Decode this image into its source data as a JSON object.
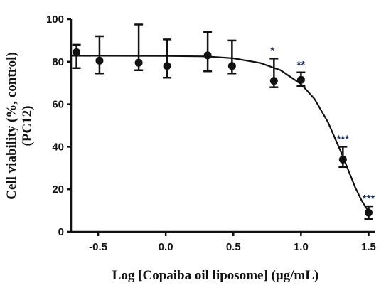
{
  "chart_data": {
    "type": "scatter",
    "xlabel": "Log [Copaiba oil liposome] (μg/mL)",
    "ylabel_line1": "Cell viability (%, control)",
    "ylabel_line2": "(PC12)",
    "xlim": [
      -0.7,
      1.55
    ],
    "ylim": [
      0,
      100
    ],
    "x_ticks": [
      -0.5,
      0.0,
      0.5,
      1.0,
      1.5
    ],
    "x_tick_labels": [
      "-0.5",
      "0.0",
      "0.5",
      "1.0",
      "1.5"
    ],
    "y_ticks": [
      0,
      20,
      40,
      60,
      80,
      100
    ],
    "y_tick_labels": [
      "0",
      "20",
      "40",
      "60",
      "80",
      "100"
    ],
    "grid": false,
    "points": [
      {
        "x": -0.66,
        "y": 84.5,
        "err_low": 77.0,
        "err_high": 88.0,
        "sig": ""
      },
      {
        "x": -0.49,
        "y": 80.5,
        "err_low": 74.5,
        "err_high": 92.0,
        "sig": ""
      },
      {
        "x": -0.2,
        "y": 79.5,
        "err_low": 76.0,
        "err_high": 97.5,
        "sig": ""
      },
      {
        "x": 0.01,
        "y": 78.0,
        "err_low": 72.5,
        "err_high": 90.5,
        "sig": ""
      },
      {
        "x": 0.31,
        "y": 83.0,
        "err_low": 75.5,
        "err_high": 94.0,
        "sig": ""
      },
      {
        "x": 0.49,
        "y": 78.0,
        "err_low": 74.5,
        "err_high": 90.0,
        "sig": ""
      },
      {
        "x": 0.8,
        "y": 71.0,
        "err_low": 68.0,
        "err_high": 81.5,
        "sig": "*"
      },
      {
        "x": 1.0,
        "y": 71.5,
        "err_low": 68.5,
        "err_high": 75.0,
        "sig": "**"
      },
      {
        "x": 1.31,
        "y": 34.0,
        "err_low": 30.5,
        "err_high": 40.0,
        "sig": "***"
      },
      {
        "x": 1.5,
        "y": 9.0,
        "err_low": 6.0,
        "err_high": 12.0,
        "sig": "***"
      }
    ],
    "curve": [
      {
        "x": -0.7,
        "y": 82.8
      },
      {
        "x": 0.0,
        "y": 82.7
      },
      {
        "x": 0.3,
        "y": 82.5
      },
      {
        "x": 0.5,
        "y": 81.6
      },
      {
        "x": 0.7,
        "y": 79.4
      },
      {
        "x": 0.85,
        "y": 76.0
      },
      {
        "x": 1.0,
        "y": 69.5
      },
      {
        "x": 1.1,
        "y": 62.5
      },
      {
        "x": 1.2,
        "y": 51.5
      },
      {
        "x": 1.3,
        "y": 37.0
      },
      {
        "x": 1.4,
        "y": 21.0
      },
      {
        "x": 1.45,
        "y": 14.5
      },
      {
        "x": 1.5,
        "y": 9.5
      }
    ]
  }
}
